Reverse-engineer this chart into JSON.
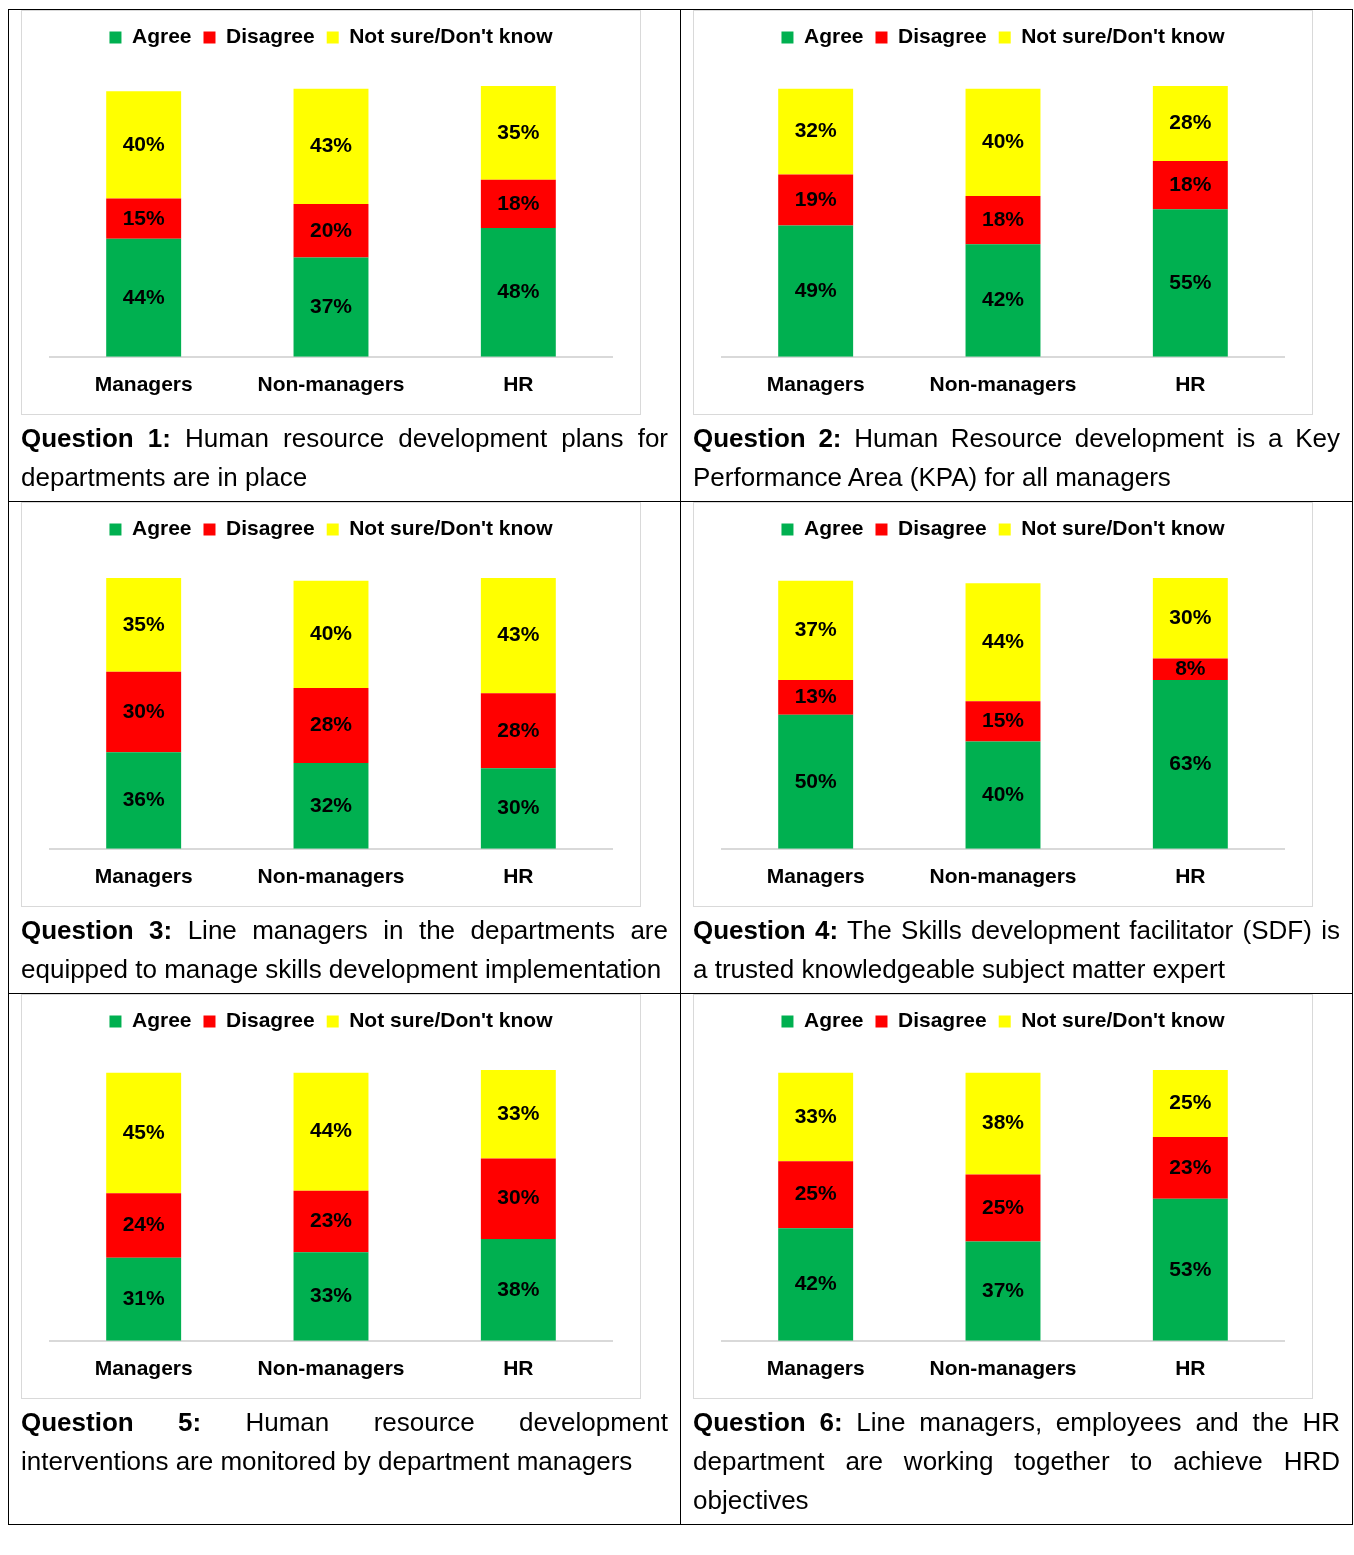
{
  "chart_data": [
    {
      "type": "bar",
      "stacked": true,
      "legend": "top",
      "title": "Question 1: Human resource development plans for departments are in place",
      "categories": [
        "Managers",
        "Non-managers",
        "HR"
      ],
      "series": [
        {
          "name": "Agree",
          "color": "#00b050",
          "values": [
            44,
            37,
            48
          ],
          "value_labels": [
            "44%",
            "37%",
            "48%"
          ]
        },
        {
          "name": "Disagree",
          "color": "#ff0000",
          "values": [
            15,
            20,
            18
          ],
          "value_labels": [
            "15%",
            "20%",
            "18%"
          ]
        },
        {
          "name": "Not sure/Don't know",
          "color": "#ffff00",
          "values": [
            40,
            43,
            35
          ],
          "value_labels": [
            "40%",
            "43%",
            "35%"
          ]
        }
      ]
    },
    {
      "type": "bar",
      "stacked": true,
      "legend": "top",
      "title": "Question 2: Human Resource development is a Key Performance Area (KPA) for all managers",
      "categories": [
        "Managers",
        "Non-managers",
        "HR"
      ],
      "series": [
        {
          "name": "Agree",
          "color": "#00b050",
          "values": [
            49,
            42,
            55
          ],
          "value_labels": [
            "49%",
            "42%",
            "55%"
          ]
        },
        {
          "name": "Disagree",
          "color": "#ff0000",
          "values": [
            19,
            18,
            18
          ],
          "value_labels": [
            "19%",
            "18%",
            "18%"
          ]
        },
        {
          "name": "Not sure/Don't know",
          "color": "#ffff00",
          "values": [
            32,
            40,
            28
          ],
          "value_labels": [
            "32%",
            "40%",
            "28%"
          ]
        }
      ]
    },
    {
      "type": "bar",
      "stacked": true,
      "legend": "top",
      "title": "Question 3: Line managers in the departments are equipped to manage skills development implementation",
      "categories": [
        "Managers",
        "Non-managers",
        "HR"
      ],
      "series": [
        {
          "name": "Agree",
          "color": "#00b050",
          "values": [
            36,
            32,
            30
          ],
          "value_labels": [
            "36%",
            "32%",
            "30%"
          ]
        },
        {
          "name": "Disagree",
          "color": "#ff0000",
          "values": [
            30,
            28,
            28
          ],
          "value_labels": [
            "30%",
            "28%",
            "28%"
          ]
        },
        {
          "name": "Not sure/Don't know",
          "color": "#ffff00",
          "values": [
            35,
            40,
            43
          ],
          "value_labels": [
            "35%",
            "40%",
            "43%"
          ]
        }
      ]
    },
    {
      "type": "bar",
      "stacked": true,
      "legend": "top",
      "title": "Question 4: The Skills development facilitator (SDF) is a trusted knowledgeable subject matter expert",
      "categories": [
        "Managers",
        "Non-managers",
        "HR"
      ],
      "series": [
        {
          "name": "Agree",
          "color": "#00b050",
          "values": [
            50,
            40,
            63
          ],
          "value_labels": [
            "50%",
            "40%",
            "63%"
          ]
        },
        {
          "name": "Disagree",
          "color": "#ff0000",
          "values": [
            13,
            15,
            8
          ],
          "value_labels": [
            "13%",
            "15%",
            "8%"
          ]
        },
        {
          "name": "Not sure/Don't know",
          "color": "#ffff00",
          "values": [
            37,
            44,
            30
          ],
          "value_labels": [
            "37%",
            "44%",
            "30%"
          ]
        }
      ]
    },
    {
      "type": "bar",
      "stacked": true,
      "legend": "top",
      "title": "Question 5: Human resource development interventions are monitored by department managers",
      "categories": [
        "Managers",
        "Non-managers",
        "HR"
      ],
      "series": [
        {
          "name": "Agree",
          "color": "#00b050",
          "values": [
            31,
            33,
            38
          ],
          "value_labels": [
            "31%",
            "33%",
            "38%"
          ]
        },
        {
          "name": "Disagree",
          "color": "#ff0000",
          "values": [
            24,
            23,
            30
          ],
          "value_labels": [
            "24%",
            "23%",
            "30%"
          ]
        },
        {
          "name": "Not sure/Don't know",
          "color": "#ffff00",
          "values": [
            45,
            44,
            33
          ],
          "value_labels": [
            "45%",
            "44%",
            "33%"
          ]
        }
      ]
    },
    {
      "type": "bar",
      "stacked": true,
      "legend": "top",
      "title": "Question 6: Line managers, employees and the HR department are working together to achieve HRD objectives",
      "categories": [
        "Managers",
        "Non-managers",
        "HR"
      ],
      "series": [
        {
          "name": "Agree",
          "color": "#00b050",
          "values": [
            42,
            37,
            53
          ],
          "value_labels": [
            "42%",
            "37%",
            "53%"
          ]
        },
        {
          "name": "Disagree",
          "color": "#ff0000",
          "values": [
            25,
            25,
            23
          ],
          "value_labels": [
            "25%",
            "25%",
            "23%"
          ]
        },
        {
          "name": "Not sure/Don't know",
          "color": "#ffff00",
          "values": [
            33,
            38,
            25
          ],
          "value_labels": [
            "33%",
            "38%",
            "25%"
          ]
        }
      ]
    }
  ]
}
